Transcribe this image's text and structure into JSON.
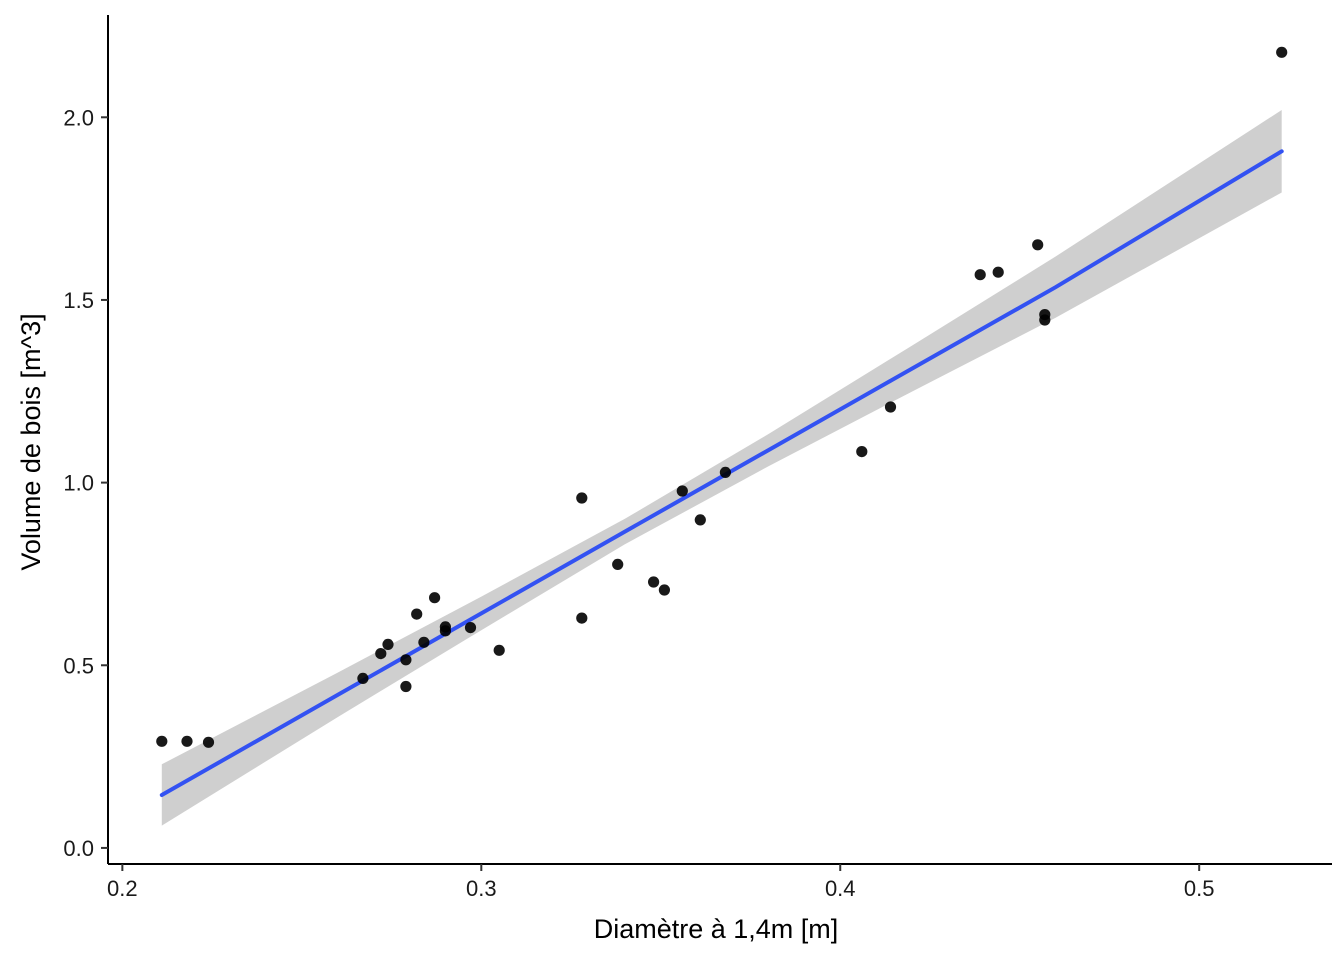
{
  "chart_data": {
    "type": "scatter",
    "title": "",
    "xlabel": "Diamètre à 1,4m  [m]",
    "ylabel": "Volume de bois  [m^3]",
    "xlim": [
      0.196,
      0.537
    ],
    "ylim": [
      -0.044,
      2.28
    ],
    "x_ticks": [
      0.2,
      0.3,
      0.4,
      0.5
    ],
    "x_tick_labels": [
      "0.2",
      "0.3",
      "0.4",
      "0.5"
    ],
    "y_ticks": [
      0.0,
      0.5,
      1.0,
      1.5,
      2.0
    ],
    "y_tick_labels": [
      "0.0",
      "0.5",
      "1.0",
      "1.5",
      "2.0"
    ],
    "grid": false,
    "points": [
      {
        "x": 0.211,
        "y": 0.292
      },
      {
        "x": 0.218,
        "y": 0.292
      },
      {
        "x": 0.224,
        "y": 0.289
      },
      {
        "x": 0.267,
        "y": 0.464
      },
      {
        "x": 0.272,
        "y": 0.532
      },
      {
        "x": 0.274,
        "y": 0.557
      },
      {
        "x": 0.279,
        "y": 0.442
      },
      {
        "x": 0.279,
        "y": 0.515
      },
      {
        "x": 0.282,
        "y": 0.64
      },
      {
        "x": 0.284,
        "y": 0.563
      },
      {
        "x": 0.287,
        "y": 0.685
      },
      {
        "x": 0.29,
        "y": 0.594
      },
      {
        "x": 0.29,
        "y": 0.605
      },
      {
        "x": 0.297,
        "y": 0.603
      },
      {
        "x": 0.305,
        "y": 0.541
      },
      {
        "x": 0.328,
        "y": 0.958
      },
      {
        "x": 0.328,
        "y": 0.629
      },
      {
        "x": 0.338,
        "y": 0.776
      },
      {
        "x": 0.348,
        "y": 0.728
      },
      {
        "x": 0.351,
        "y": 0.706
      },
      {
        "x": 0.356,
        "y": 0.977
      },
      {
        "x": 0.361,
        "y": 0.898
      },
      {
        "x": 0.368,
        "y": 1.028
      },
      {
        "x": 0.406,
        "y": 1.085
      },
      {
        "x": 0.414,
        "y": 1.207
      },
      {
        "x": 0.439,
        "y": 1.569
      },
      {
        "x": 0.444,
        "y": 1.576
      },
      {
        "x": 0.455,
        "y": 1.651
      },
      {
        "x": 0.457,
        "y": 1.445
      },
      {
        "x": 0.457,
        "y": 1.46
      },
      {
        "x": 0.523,
        "y": 2.178
      }
    ],
    "fit": {
      "line_color": "#3352f2",
      "band_color": "#cccccc",
      "x": [
        0.211,
        0.26,
        0.3,
        0.34,
        0.38,
        0.42,
        0.46,
        0.523
      ],
      "y": [
        0.145,
        0.419,
        0.642,
        0.866,
        1.089,
        1.312,
        1.535,
        1.907
      ],
      "lower": [
        0.061,
        0.358,
        0.596,
        0.831,
        1.045,
        1.249,
        1.451,
        1.794
      ],
      "upper": [
        0.229,
        0.48,
        0.688,
        0.901,
        1.133,
        1.375,
        1.619,
        2.02
      ]
    },
    "point_color": "#000000"
  }
}
